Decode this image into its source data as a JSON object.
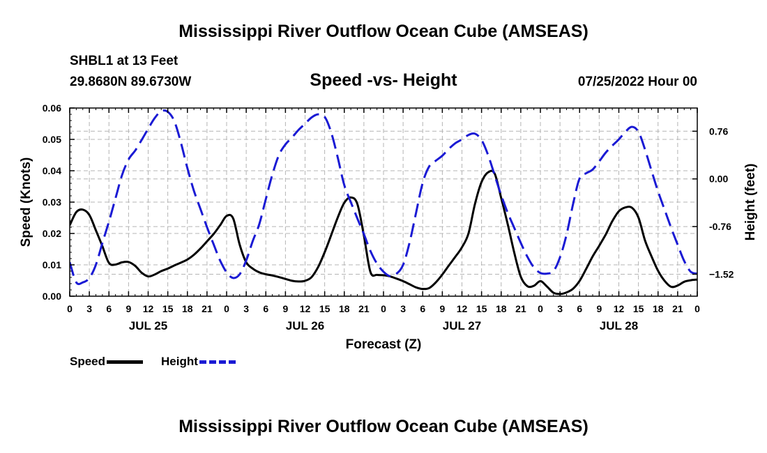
{
  "title": "Mississippi River Outflow Ocean Cube (AMSEAS)",
  "station": "SHBL1 at 13 Feet",
  "coordinates": "29.8680N  89.6730W",
  "subtitle": "Speed -vs- Height",
  "datestamp": "07/25/2022 Hour 00",
  "legend": {
    "speed_label": "Speed",
    "height_label": "Height"
  },
  "colors": {
    "speed": "#000000",
    "height": "#1a1ad4",
    "grid": "#b4b4b4"
  },
  "footer_title": "Mississippi River Outflow Ocean Cube (AMSEAS)",
  "chart_data": {
    "type": "line",
    "xlabel": "Forecast (Z)",
    "ylabel_left": "Speed (Knots)",
    "ylabel_right": "Height (feet)",
    "x_range_hours": [
      0,
      96
    ],
    "y_left_range": [
      0,
      0.06
    ],
    "y_left_ticks": [
      "0.00",
      "0.01",
      "0.02",
      "0.03",
      "0.04",
      "0.05",
      "0.06"
    ],
    "y_right_range": [
      -1.87,
      1.13
    ],
    "y_right_ticks": [
      {
        "value": 0.76,
        "label": "0.76"
      },
      {
        "value": 0.0,
        "label": "0.00"
      },
      {
        "value": -0.76,
        "label": "-0.76"
      },
      {
        "value": -1.52,
        "label": "−1.52"
      }
    ],
    "x_tick_labels": [
      "0",
      "3",
      "6",
      "9",
      "12",
      "15",
      "18",
      "21",
      "0",
      "3",
      "6",
      "9",
      "12",
      "15",
      "18",
      "21",
      "0",
      "3",
      "6",
      "9",
      "12",
      "15",
      "18",
      "21",
      "0",
      "3",
      "6",
      "9",
      "12",
      "15",
      "18",
      "21",
      "0"
    ],
    "day_labels": [
      "JUL 25",
      "JUL 26",
      "JUL 27",
      "JUL 28"
    ],
    "series": [
      {
        "name": "Speed",
        "axis": "left",
        "style": "solid",
        "x": [
          0,
          1,
          2,
          3,
          4,
          5,
          6,
          7,
          8,
          9,
          10,
          11,
          12,
          13,
          14,
          15,
          16,
          17,
          18,
          19,
          20,
          21,
          22,
          23,
          24,
          25,
          26,
          27,
          28,
          29,
          30,
          31,
          32,
          33,
          34,
          35,
          36,
          37,
          38,
          39,
          40,
          41,
          42,
          43,
          44,
          45,
          46,
          47,
          48,
          49,
          50,
          51,
          52,
          53,
          54,
          55,
          56,
          57,
          58,
          59,
          60,
          61,
          62,
          63,
          64,
          65,
          66,
          67,
          68,
          69,
          70,
          71,
          72,
          73,
          74,
          75,
          76,
          77,
          78,
          79,
          80,
          81,
          82,
          83,
          84,
          85,
          86,
          87,
          88,
          89,
          90,
          91,
          92,
          93,
          94,
          95,
          96
        ],
        "values": [
          0.0226,
          0.0268,
          0.0276,
          0.0259,
          0.021,
          0.0159,
          0.0106,
          0.0101,
          0.0108,
          0.0109,
          0.0097,
          0.0075,
          0.0063,
          0.0069,
          0.008,
          0.0088,
          0.0098,
          0.0107,
          0.0117,
          0.0132,
          0.0152,
          0.0175,
          0.0198,
          0.0226,
          0.0256,
          0.0248,
          0.0164,
          0.0108,
          0.0088,
          0.0076,
          0.007,
          0.0066,
          0.0061,
          0.0055,
          0.0049,
          0.0047,
          0.0049,
          0.0061,
          0.0093,
          0.014,
          0.0195,
          0.0251,
          0.0298,
          0.0315,
          0.0294,
          0.0193,
          0.0077,
          0.0068,
          0.0067,
          0.0063,
          0.0056,
          0.0048,
          0.0038,
          0.0028,
          0.0023,
          0.0026,
          0.0044,
          0.0069,
          0.0098,
          0.0126,
          0.0156,
          0.02,
          0.0295,
          0.0364,
          0.0395,
          0.0391,
          0.0313,
          0.023,
          0.0139,
          0.0062,
          0.0032,
          0.0033,
          0.0048,
          0.0031,
          0.0011,
          0.0007,
          0.0012,
          0.0024,
          0.0049,
          0.0087,
          0.0127,
          0.0161,
          0.0197,
          0.0239,
          0.0271,
          0.0283,
          0.0282,
          0.0251,
          0.0178,
          0.0127,
          0.0081,
          0.0049,
          0.003,
          0.0034,
          0.0046,
          0.0051,
          0.0053
        ]
      },
      {
        "name": "Height",
        "axis": "right",
        "style": "dashed",
        "x": [
          0,
          1,
          2,
          3,
          4,
          5,
          6,
          7,
          8,
          9,
          10,
          11,
          12,
          13,
          14,
          15,
          16,
          17,
          18,
          19,
          20,
          21,
          22,
          23,
          24,
          25,
          26,
          27,
          28,
          29,
          30,
          31,
          32,
          33,
          34,
          35,
          36,
          37,
          38,
          39,
          40,
          41,
          42,
          43,
          44,
          45,
          46,
          47,
          48,
          49,
          50,
          51,
          52,
          53,
          54,
          55,
          56,
          57,
          58,
          59,
          60,
          61,
          62,
          63,
          64,
          65,
          66,
          67,
          68,
          69,
          70,
          71,
          72,
          73,
          74,
          75,
          76,
          77,
          78,
          79,
          80,
          81,
          82,
          83,
          84,
          85,
          86,
          87,
          88,
          89,
          90,
          91,
          92,
          93,
          94,
          95,
          96
        ],
        "values": [
          -1.33,
          -1.65,
          -1.65,
          -1.58,
          -1.37,
          -1.02,
          -0.68,
          -0.31,
          0.06,
          0.31,
          0.45,
          0.62,
          0.8,
          0.97,
          1.08,
          1.07,
          0.92,
          0.58,
          0.17,
          -0.19,
          -0.48,
          -0.77,
          -1.04,
          -1.3,
          -1.49,
          -1.58,
          -1.52,
          -1.3,
          -0.99,
          -0.72,
          -0.32,
          0.07,
          0.38,
          0.55,
          0.66,
          0.78,
          0.88,
          0.98,
          1.03,
          0.99,
          0.74,
          0.34,
          -0.1,
          -0.37,
          -0.63,
          -0.88,
          -1.15,
          -1.35,
          -1.48,
          -1.55,
          -1.51,
          -1.37,
          -1.01,
          -0.53,
          -0.06,
          0.2,
          0.29,
          0.37,
          0.48,
          0.57,
          0.63,
          0.7,
          0.72,
          0.62,
          0.38,
          0.06,
          -0.26,
          -0.54,
          -0.78,
          -1.02,
          -1.24,
          -1.41,
          -1.5,
          -1.51,
          -1.47,
          -1.25,
          -0.89,
          -0.4,
          0.01,
          0.09,
          0.15,
          0.28,
          0.42,
          0.53,
          0.63,
          0.75,
          0.83,
          0.75,
          0.47,
          0.13,
          -0.2,
          -0.49,
          -0.78,
          -1.05,
          -1.31,
          -1.48,
          -1.51
        ]
      }
    ]
  }
}
